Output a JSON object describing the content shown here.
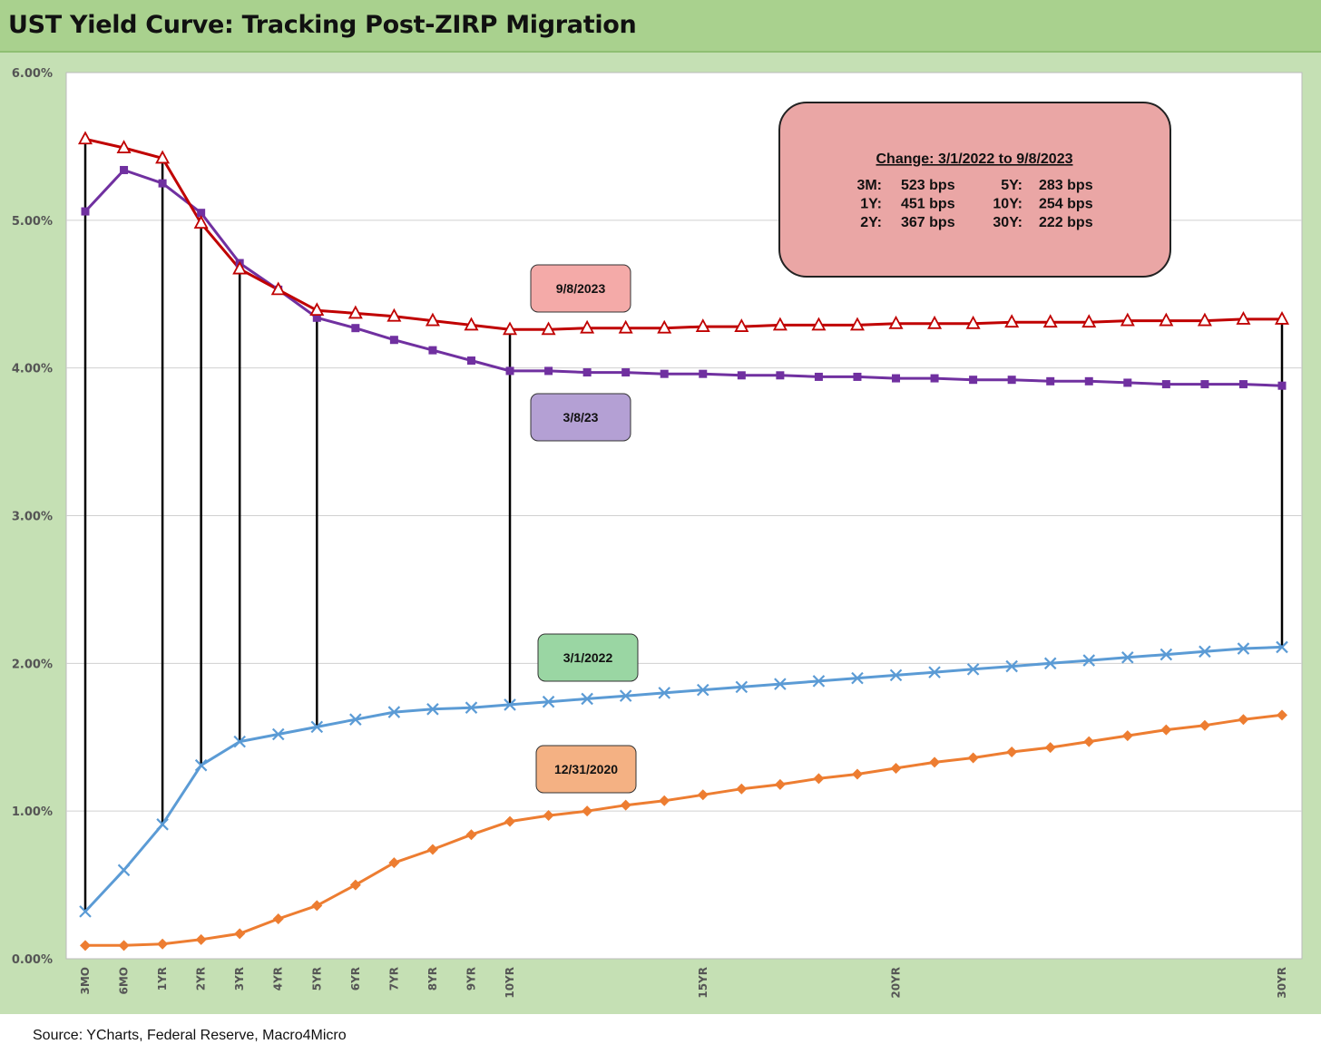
{
  "title": "UST Yield Curve: Tracking Post-ZIRP Migration",
  "source": "Source:  YCharts, Federal Reserve, Macro4Micro",
  "chart_data": {
    "type": "line",
    "ylim": [
      0,
      6
    ],
    "y_ticks": [
      "0.00%",
      "1.00%",
      "2.00%",
      "3.00%",
      "4.00%",
      "5.00%",
      "6.00%"
    ],
    "grid": true,
    "x": [
      0.25,
      0.5,
      1,
      2,
      3,
      4,
      5,
      6,
      7,
      8,
      9,
      10,
      11,
      12,
      13,
      14,
      15,
      16,
      17,
      18,
      19,
      20,
      21,
      22,
      23,
      24,
      25,
      26,
      27,
      28,
      29,
      30
    ],
    "x_labels": [
      {
        "label": "3MO",
        "index": 0
      },
      {
        "label": "6MO",
        "index": 1
      },
      {
        "label": "1YR",
        "index": 2
      },
      {
        "label": "2YR",
        "index": 3
      },
      {
        "label": "3YR",
        "index": 4
      },
      {
        "label": "4YR",
        "index": 5
      },
      {
        "label": "5YR",
        "index": 6
      },
      {
        "label": "6YR",
        "index": 7
      },
      {
        "label": "7YR",
        "index": 8
      },
      {
        "label": "8YR",
        "index": 9
      },
      {
        "label": "9YR",
        "index": 10
      },
      {
        "label": "10YR",
        "index": 11
      },
      {
        "label": "15YR",
        "index": 16
      },
      {
        "label": "20YR",
        "index": 21
      },
      {
        "label": "30YR",
        "index": 31
      }
    ],
    "series": [
      {
        "name": "9/8/2023",
        "color": "#c00000",
        "marker": "triangle",
        "values": [
          5.55,
          5.49,
          5.42,
          4.98,
          4.67,
          4.53,
          4.39,
          4.37,
          4.35,
          4.32,
          4.29,
          4.26,
          4.26,
          4.27,
          4.27,
          4.27,
          4.28,
          4.28,
          4.29,
          4.29,
          4.29,
          4.3,
          4.3,
          4.3,
          4.31,
          4.31,
          4.31,
          4.32,
          4.32,
          4.32,
          4.33,
          4.33
        ]
      },
      {
        "name": "3/8/23",
        "color": "#7030a0",
        "marker": "square",
        "values": [
          5.06,
          5.34,
          5.25,
          5.05,
          4.71,
          4.53,
          4.34,
          4.27,
          4.19,
          4.12,
          4.05,
          3.98,
          3.98,
          3.97,
          3.97,
          3.96,
          3.96,
          3.95,
          3.95,
          3.94,
          3.94,
          3.93,
          3.93,
          3.92,
          3.92,
          3.91,
          3.91,
          3.9,
          3.89,
          3.89,
          3.89,
          3.88
        ]
      },
      {
        "name": "3/1/2022",
        "color": "#5b9bd5",
        "marker": "x",
        "values": [
          0.32,
          0.6,
          0.91,
          1.31,
          1.47,
          1.52,
          1.57,
          1.62,
          1.67,
          1.69,
          1.7,
          1.72,
          1.74,
          1.76,
          1.78,
          1.8,
          1.82,
          1.84,
          1.86,
          1.88,
          1.9,
          1.92,
          1.94,
          1.96,
          1.98,
          2.0,
          2.02,
          2.04,
          2.06,
          2.08,
          2.1,
          2.11
        ]
      },
      {
        "name": "12/31/2020",
        "color": "#ed7d31",
        "marker": "diamond",
        "values": [
          0.09,
          0.09,
          0.1,
          0.13,
          0.17,
          0.27,
          0.36,
          0.5,
          0.65,
          0.74,
          0.84,
          0.93,
          0.97,
          1.0,
          1.04,
          1.07,
          1.11,
          1.15,
          1.18,
          1.22,
          1.25,
          1.29,
          1.33,
          1.36,
          1.4,
          1.43,
          1.47,
          1.51,
          1.55,
          1.58,
          1.62,
          1.65
        ]
      }
    ],
    "change_lines_at_index": [
      0,
      2,
      3,
      4,
      6,
      11,
      31
    ],
    "labels": [
      {
        "text": "9/8/2023",
        "fill": "#f4aaa8"
      },
      {
        "text": "3/8/23",
        "fill": "#b4a0d4"
      },
      {
        "text": "3/1/2022",
        "fill": "#9ad6a3"
      },
      {
        "text": "12/31/2020",
        "fill": "#f4b183"
      }
    ],
    "change_box": {
      "title": "Change: 3/1/2022 to 9/8/2023",
      "fill": "#eaa6a5",
      "rows": [
        {
          "k1": "3M:",
          "v1": "523 bps",
          "k2": "5Y:",
          "v2": "283 bps"
        },
        {
          "k1": "1Y:",
          "v1": "451 bps",
          "k2": "10Y:",
          "v2": "254 bps"
        },
        {
          "k1": "2Y:",
          "v1": "367 bps",
          "k2": "30Y:",
          "v2": "222 bps"
        }
      ]
    }
  }
}
